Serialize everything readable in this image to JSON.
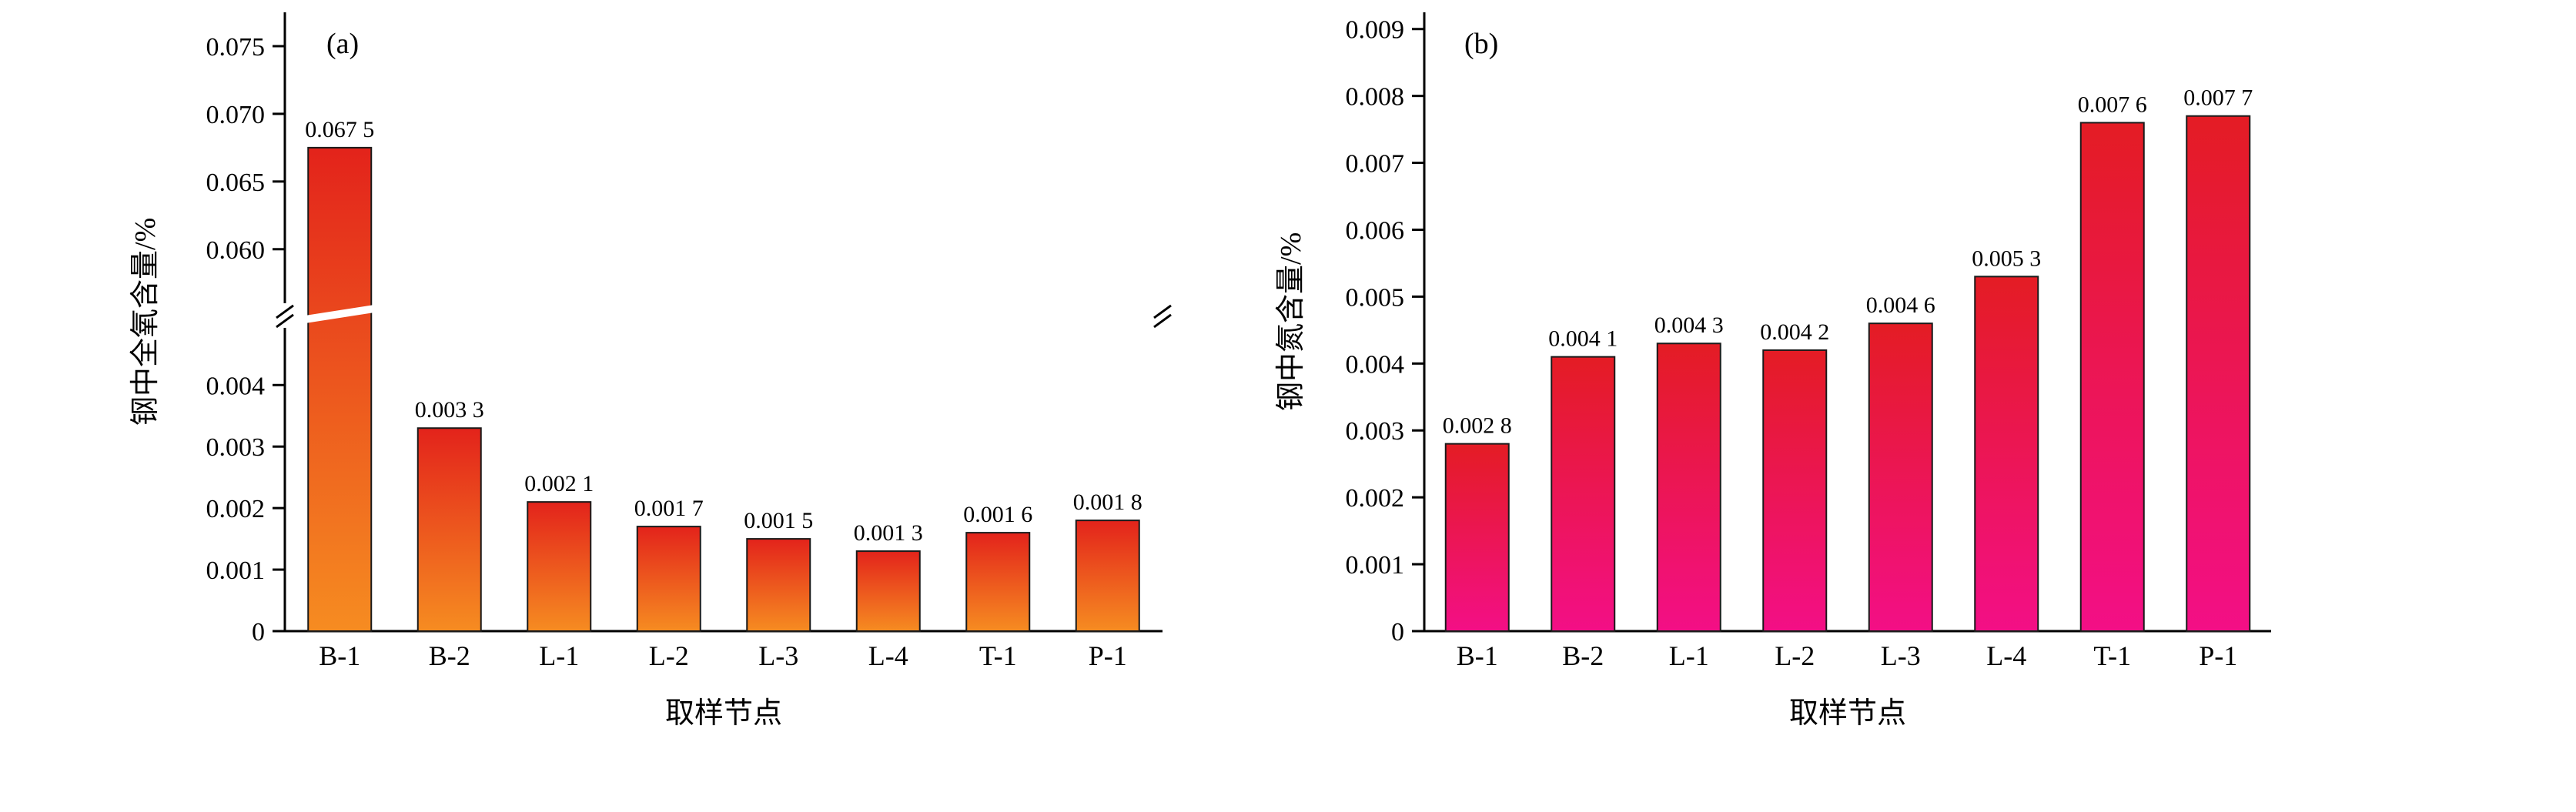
{
  "figure": {
    "background": "#ffffff"
  },
  "chart_data": [
    {
      "type": "bar",
      "panel_label": "(a)",
      "xlabel": "取样节点",
      "ylabel": "钢中全氧含量/%",
      "categories": [
        "B-1",
        "B-2",
        "L-1",
        "L-2",
        "L-3",
        "L-4",
        "T-1",
        "P-1"
      ],
      "values": [
        0.0675,
        0.0033,
        0.0021,
        0.0017,
        0.0015,
        0.0013,
        0.0016,
        0.0018
      ],
      "value_labels": [
        "0.067 5",
        "0.003 3",
        "0.002 1",
        "0.001 7",
        "0.001 5",
        "0.001 3",
        "0.001 6",
        "0.001 8"
      ],
      "bar_color_top": "#e3231b",
      "bar_color_bottom": "#f68c21",
      "bar_outline_color": "#1a1a1a",
      "axis_color": "#000000",
      "grid": false,
      "legend": false,
      "axis_break": {
        "lower_max": 0.00513,
        "upper_min": 0.0551,
        "upper_max": 0.0775,
        "break_fraction": 0.51
      },
      "yticks_lower": [
        {
          "v": 0,
          "label": "0"
        },
        {
          "v": 0.001,
          "label": "0.001"
        },
        {
          "v": 0.002,
          "label": "0.002"
        },
        {
          "v": 0.003,
          "label": "0.003"
        },
        {
          "v": 0.004,
          "label": "0.004"
        }
      ],
      "yticks_upper": [
        {
          "v": 0.06,
          "label": "0.060"
        },
        {
          "v": 0.065,
          "label": "0.065"
        },
        {
          "v": 0.07,
          "label": "0.070"
        },
        {
          "v": 0.075,
          "label": "0.075"
        }
      ]
    },
    {
      "type": "bar",
      "panel_label": "(b)",
      "xlabel": "取样节点",
      "ylabel": "钢中氮含量/%",
      "categories": [
        "B-1",
        "B-2",
        "L-1",
        "L-2",
        "L-3",
        "L-4",
        "T-1",
        "P-1"
      ],
      "values": [
        0.0028,
        0.0041,
        0.0043,
        0.0042,
        0.0046,
        0.0053,
        0.0076,
        0.0077
      ],
      "value_labels": [
        "0.002 8",
        "0.004 1",
        "0.004 3",
        "0.004 2",
        "0.004 6",
        "0.005 3",
        "0.007 6",
        "0.007 7"
      ],
      "bar_color_top": "#e41c24",
      "bar_color_bottom": "#f30f86",
      "bar_outline_color": "#1a1a1a",
      "axis_color": "#000000",
      "grid": false,
      "legend": false,
      "ylim": [
        0,
        0.00925
      ],
      "yticks": [
        {
          "v": 0,
          "label": "0"
        },
        {
          "v": 0.001,
          "label": "0.001"
        },
        {
          "v": 0.002,
          "label": "0.002"
        },
        {
          "v": 0.003,
          "label": "0.003"
        },
        {
          "v": 0.004,
          "label": "0.004"
        },
        {
          "v": 0.005,
          "label": "0.005"
        },
        {
          "v": 0.006,
          "label": "0.006"
        },
        {
          "v": 0.007,
          "label": "0.007"
        },
        {
          "v": 0.008,
          "label": "0.008"
        },
        {
          "v": 0.009,
          "label": "0.009"
        }
      ]
    }
  ]
}
